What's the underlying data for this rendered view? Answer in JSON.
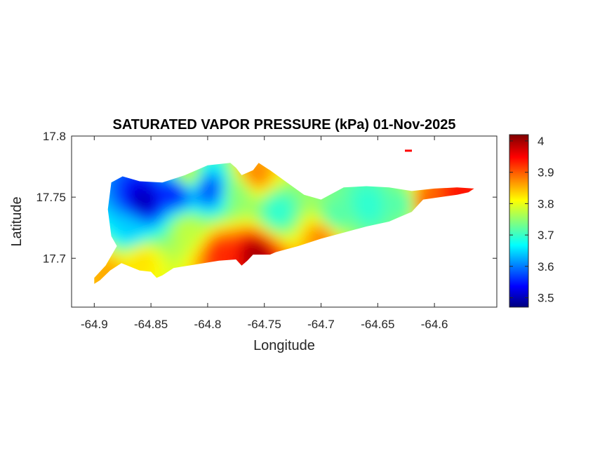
{
  "title": "SATURATED VAPOR PRESSURE (kPa) 01-Nov-2025",
  "axes": {
    "xlabel": "Longitude",
    "ylabel": "Latitude",
    "xlim": [
      -64.92,
      -64.545
    ],
    "ylim": [
      17.66,
      17.8
    ],
    "xticks": [
      {
        "value": -64.9,
        "label": "-64.9"
      },
      {
        "value": -64.85,
        "label": "-64.85"
      },
      {
        "value": -64.8,
        "label": "-64.8"
      },
      {
        "value": -64.75,
        "label": "-64.75"
      },
      {
        "value": -64.7,
        "label": "-64.7"
      },
      {
        "value": -64.65,
        "label": "-64.65"
      },
      {
        "value": -64.6,
        "label": "-64.6"
      }
    ],
    "yticks": [
      {
        "value": 17.8,
        "label": "17.8"
      },
      {
        "value": 17.75,
        "label": "17.75"
      },
      {
        "value": 17.7,
        "label": "17.7"
      }
    ]
  },
  "colorbar": {
    "colormap": "jet",
    "range": [
      3.47,
      4.02
    ],
    "ticks": [
      {
        "value": 4.0,
        "label": "4"
      },
      {
        "value": 3.9,
        "label": "3.9"
      },
      {
        "value": 3.8,
        "label": "3.8"
      },
      {
        "value": 3.7,
        "label": "3.7"
      },
      {
        "value": 3.6,
        "label": "3.6"
      },
      {
        "value": 3.5,
        "label": "3.5"
      }
    ]
  },
  "chart_data": {
    "type": "heatmap",
    "title": "SATURATED VAPOR PRESSURE (kPa) 01-Nov-2025",
    "xlabel": "Longitude",
    "ylabel": "Latitude",
    "xlim": [
      -64.92,
      -64.545
    ],
    "ylim": [
      17.66,
      17.8
    ],
    "clim": [
      3.47,
      4.02
    ],
    "grid": false,
    "island_outline": [
      [
        -64.9,
        17.679
      ],
      [
        -64.895,
        17.682
      ],
      [
        -64.886,
        17.69
      ],
      [
        -64.876,
        17.696
      ],
      [
        -64.86,
        17.69
      ],
      [
        -64.85,
        17.689
      ],
      [
        -64.845,
        17.684
      ],
      [
        -64.84,
        17.686
      ],
      [
        -64.83,
        17.692
      ],
      [
        -64.81,
        17.695
      ],
      [
        -64.79,
        17.698
      ],
      [
        -64.775,
        17.699
      ],
      [
        -64.77,
        17.694
      ],
      [
        -64.765,
        17.698
      ],
      [
        -64.76,
        17.703
      ],
      [
        -64.75,
        17.703
      ],
      [
        -64.745,
        17.703
      ],
      [
        -64.74,
        17.705
      ],
      [
        -64.72,
        17.71
      ],
      [
        -64.7,
        17.716
      ],
      [
        -64.68,
        17.721
      ],
      [
        -64.66,
        17.726
      ],
      [
        -64.64,
        17.73
      ],
      [
        -64.63,
        17.734
      ],
      [
        -64.62,
        17.738
      ],
      [
        -64.61,
        17.748
      ],
      [
        -64.595,
        17.75
      ],
      [
        -64.58,
        17.752
      ],
      [
        -64.57,
        17.754
      ],
      [
        -64.565,
        17.757
      ],
      [
        -64.58,
        17.758
      ],
      [
        -64.6,
        17.757
      ],
      [
        -64.62,
        17.755
      ],
      [
        -64.64,
        17.758
      ],
      [
        -64.66,
        17.759
      ],
      [
        -64.68,
        17.758
      ],
      [
        -64.7,
        17.748
      ],
      [
        -64.715,
        17.752
      ],
      [
        -64.73,
        17.762
      ],
      [
        -64.745,
        17.772
      ],
      [
        -64.755,
        17.778
      ],
      [
        -64.76,
        17.772
      ],
      [
        -64.77,
        17.768
      ],
      [
        -64.775,
        17.774
      ],
      [
        -64.78,
        17.778
      ],
      [
        -64.8,
        17.776
      ],
      [
        -64.82,
        17.768
      ],
      [
        -64.84,
        17.762
      ],
      [
        -64.86,
        17.763
      ],
      [
        -64.875,
        17.767
      ],
      [
        -64.885,
        17.762
      ],
      [
        -64.888,
        17.74
      ],
      [
        -64.885,
        17.718
      ],
      [
        -64.88,
        17.71
      ],
      [
        -64.89,
        17.694
      ],
      [
        -64.9,
        17.684
      ]
    ],
    "islet": [
      -64.623,
      17.788
    ],
    "notes_values": [
      {
        "lon": -64.858,
        "lat": 17.748,
        "value": 3.5
      },
      {
        "lon": -64.83,
        "lat": 17.756,
        "value": 3.55
      },
      {
        "lon": -64.8,
        "lat": 17.758,
        "value": 3.58
      },
      {
        "lon": -64.87,
        "lat": 17.725,
        "value": 3.65
      },
      {
        "lon": -64.82,
        "lat": 17.725,
        "value": 3.78
      },
      {
        "lon": -64.775,
        "lat": 17.755,
        "value": 3.75
      },
      {
        "lon": -64.74,
        "lat": 17.74,
        "value": 3.7
      },
      {
        "lon": -64.69,
        "lat": 17.735,
        "value": 3.72
      },
      {
        "lon": -64.66,
        "lat": 17.745,
        "value": 3.7
      },
      {
        "lon": -64.63,
        "lat": 17.746,
        "value": 3.72
      },
      {
        "lon": -64.61,
        "lat": 17.748,
        "value": 3.9
      },
      {
        "lon": -64.58,
        "lat": 17.754,
        "value": 3.94
      },
      {
        "lon": -64.76,
        "lat": 17.705,
        "value": 4.0
      },
      {
        "lon": -64.79,
        "lat": 17.705,
        "value": 3.93
      },
      {
        "lon": -64.89,
        "lat": 17.69,
        "value": 3.86
      },
      {
        "lon": -64.86,
        "lat": 17.7,
        "value": 3.83
      },
      {
        "lon": -64.76,
        "lat": 17.77,
        "value": 3.88
      },
      {
        "lon": -64.7,
        "lat": 17.72,
        "value": 3.88
      },
      {
        "lon": -64.82,
        "lat": 17.77,
        "value": 3.78
      }
    ]
  }
}
